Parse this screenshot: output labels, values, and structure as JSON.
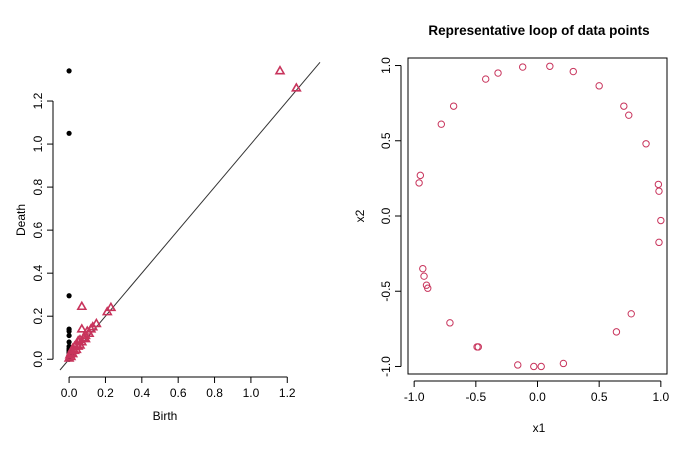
{
  "colors": {
    "dim0": "#000000",
    "dim1": "#c8345c",
    "points": "#c8345c",
    "axis": "#000000",
    "diagonal": "#333333"
  },
  "chart_data": [
    {
      "type": "scatter",
      "title": "",
      "xlabel": "Birth",
      "ylabel": "Death",
      "xlim": [
        -0.05,
        1.38
      ],
      "ylim": [
        -0.05,
        1.4
      ],
      "xticks": [
        "0.0",
        "0.2",
        "0.4",
        "0.6",
        "0.8",
        "1.0",
        "1.2"
      ],
      "yticks": [
        "0.0",
        "0.2",
        "0.4",
        "0.6",
        "0.8",
        "1.0",
        "1.2"
      ],
      "diagonal": true,
      "box": false,
      "series": [
        {
          "marker": "filled-circle",
          "color": "#000000",
          "points": [
            [
              0,
              1.34
            ],
            [
              0,
              1.05
            ],
            [
              0,
              0.295
            ],
            [
              0,
              0.14
            ],
            [
              0,
              0.13
            ],
            [
              0,
              0.11
            ],
            [
              0,
              0.08
            ],
            [
              0,
              0.06
            ],
            [
              0,
              0.05
            ],
            [
              0,
              0.045
            ],
            [
              0,
              0.04
            ],
            [
              0,
              0.035
            ],
            [
              0,
              0.03
            ],
            [
              0,
              0.025
            ],
            [
              0,
              0.02
            ],
            [
              0,
              0.015
            ],
            [
              0,
              0.01
            ],
            [
              0,
              0.005
            ],
            [
              0,
              0.0
            ]
          ]
        },
        {
          "marker": "open-triangle",
          "color": "#c8345c",
          "points": [
            [
              1.16,
              1.34
            ],
            [
              1.25,
              1.26
            ],
            [
              0.07,
              0.245
            ],
            [
              0.23,
              0.24
            ],
            [
              0.21,
              0.22
            ],
            [
              0.15,
              0.165
            ],
            [
              0.13,
              0.15
            ],
            [
              0.12,
              0.14
            ],
            [
              0.1,
              0.13
            ],
            [
              0.07,
              0.14
            ],
            [
              0.09,
              0.11
            ],
            [
              0.08,
              0.1
            ],
            [
              0.06,
              0.09
            ],
            [
              0.05,
              0.085
            ],
            [
              0.04,
              0.07
            ],
            [
              0.03,
              0.06
            ],
            [
              0.02,
              0.05
            ],
            [
              0.015,
              0.04
            ],
            [
              0.01,
              0.03
            ],
            [
              0.005,
              0.02
            ],
            [
              0.03,
              0.04
            ],
            [
              0.05,
              0.06
            ],
            [
              0.07,
              0.08
            ],
            [
              0.11,
              0.12
            ],
            [
              0.09,
              0.095
            ],
            [
              0.02,
              0.025
            ],
            [
              0.04,
              0.045
            ],
            [
              0.06,
              0.065
            ],
            [
              0.01,
              0.012
            ],
            [
              0.0,
              0.005
            ]
          ]
        }
      ]
    },
    {
      "type": "scatter",
      "title": "Representative loop of data points",
      "xlabel": "x1",
      "ylabel": "x2",
      "xlim": [
        -1.05,
        1.05
      ],
      "ylim": [
        -1.05,
        1.05
      ],
      "xticks": [
        "-1.0",
        "-0.5",
        "0.0",
        "0.5",
        "1.0"
      ],
      "yticks": [
        "-1.0",
        "-0.5",
        "0.0",
        "0.5",
        "1.0"
      ],
      "box": true,
      "series": [
        {
          "marker": "open-circle",
          "color": "#c8345c",
          "points": [
            [
              -0.96,
              0.22
            ],
            [
              -0.95,
              0.27
            ],
            [
              -0.78,
              0.61
            ],
            [
              -0.68,
              0.73
            ],
            [
              -0.42,
              0.91
            ],
            [
              -0.32,
              0.95
            ],
            [
              -0.12,
              0.99
            ],
            [
              0.1,
              0.995
            ],
            [
              0.29,
              0.96
            ],
            [
              0.5,
              0.865
            ],
            [
              0.7,
              0.73
            ],
            [
              0.74,
              0.67
            ],
            [
              0.88,
              0.48
            ],
            [
              0.98,
              0.21
            ],
            [
              0.985,
              0.165
            ],
            [
              1.0,
              -0.03
            ],
            [
              0.985,
              -0.175
            ],
            [
              -0.93,
              -0.35
            ],
            [
              -0.92,
              -0.4
            ],
            [
              -0.9,
              -0.46
            ],
            [
              -0.89,
              -0.48
            ],
            [
              -0.71,
              -0.71
            ],
            [
              -0.49,
              -0.87
            ],
            [
              -0.48,
              -0.87
            ],
            [
              -0.16,
              -0.99
            ],
            [
              -0.03,
              -1.0
            ],
            [
              0.03,
              -1.0
            ],
            [
              0.21,
              -0.98
            ],
            [
              0.64,
              -0.77
            ],
            [
              0.76,
              -0.65
            ]
          ]
        }
      ]
    }
  ]
}
